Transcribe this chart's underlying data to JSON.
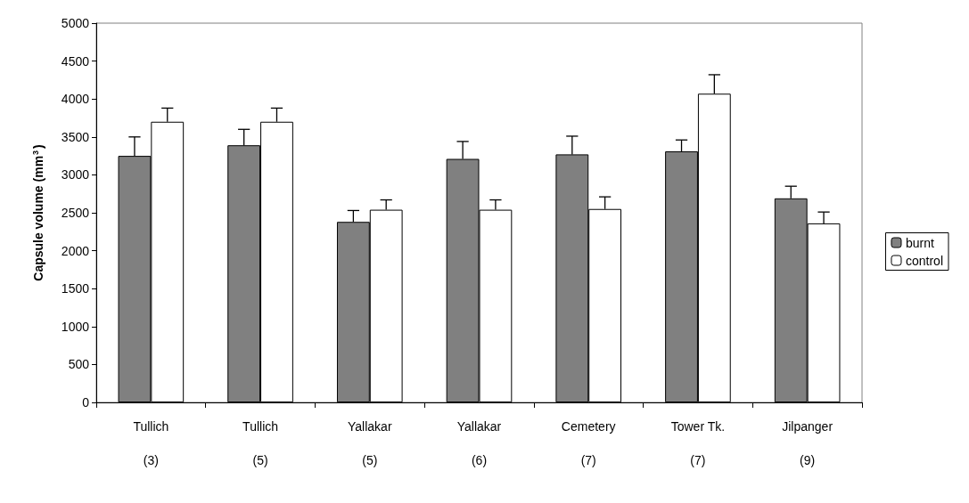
{
  "chart_data": {
    "type": "bar",
    "ylabel": "Capsule volume (mm$^{3}$)",
    "categories": [
      "Tullich\n(3)",
      "Tullich\n(5)",
      "Yallakar\n(5)",
      "Yallakar\n(6)",
      "Cemetery\n(7)",
      "Tower Tk.\n(7)",
      "Jilpanger\n(9)"
    ],
    "series": [
      {
        "name": "burnt",
        "color": "#808080",
        "values": [
          3250,
          3390,
          2380,
          3210,
          3270,
          3310,
          2690
        ],
        "errors": [
          [
            3250,
            3500
          ],
          [
            3390,
            3600
          ],
          [
            2380,
            2530
          ],
          [
            3210,
            3440
          ],
          [
            3270,
            3510
          ],
          [
            3310,
            3460
          ],
          [
            2690,
            2850
          ]
        ]
      },
      {
        "name": "control",
        "color": "#ffffff",
        "values": [
          3700,
          3700,
          2540,
          2540,
          2550,
          4070,
          2360
        ],
        "errors": [
          [
            3700,
            3880
          ],
          [
            3700,
            3880
          ],
          [
            2540,
            2670
          ],
          [
            2540,
            2670
          ],
          [
            2550,
            2710
          ],
          [
            4070,
            4320
          ],
          [
            2360,
            2510
          ]
        ]
      }
    ],
    "ylim": [
      0,
      5000
    ],
    "yticks": [
      0,
      500,
      1000,
      1500,
      2000,
      2500,
      3000,
      3500,
      4000,
      4500,
      5000
    ],
    "grid": false,
    "legend": "right"
  }
}
